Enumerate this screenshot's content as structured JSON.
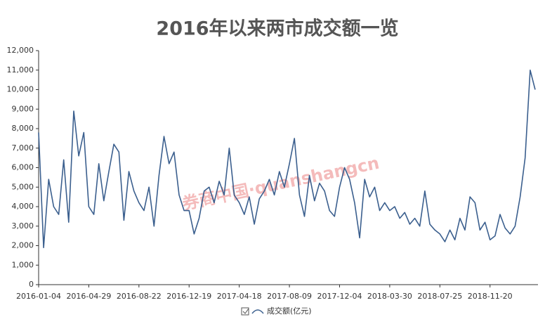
{
  "chart_data": {
    "type": "line",
    "title": "2016年以来两市成交额一览",
    "watermark": "券商中国·quanshangcn",
    "categories": [
      "2016-01-04",
      null,
      null,
      null,
      null,
      null,
      null,
      null,
      null,
      null,
      "2016-04-29",
      null,
      null,
      null,
      null,
      null,
      null,
      null,
      null,
      null,
      "2016-08-22",
      null,
      null,
      null,
      null,
      null,
      null,
      null,
      null,
      null,
      "2016-12-19",
      null,
      null,
      null,
      null,
      null,
      null,
      null,
      null,
      null,
      "2017-04-18",
      null,
      null,
      null,
      null,
      null,
      null,
      null,
      null,
      null,
      "2017-08-09",
      null,
      null,
      null,
      null,
      null,
      null,
      null,
      null,
      null,
      "2017-12-04",
      null,
      null,
      null,
      null,
      null,
      null,
      null,
      null,
      null,
      "2018-03-30",
      null,
      null,
      null,
      null,
      null,
      null,
      null,
      null,
      null,
      "2018-07-25",
      null,
      null,
      null,
      null,
      null,
      null,
      null,
      null,
      null,
      "2018-11-20",
      null,
      null,
      null,
      null,
      null,
      null,
      null,
      null,
      null
    ],
    "series": [
      {
        "name": "成交额(亿元)",
        "color": "#3b5f8e",
        "values": [
          7800,
          1900,
          5400,
          4000,
          3600,
          6400,
          3200,
          8900,
          6600,
          7800,
          4000,
          3600,
          6200,
          4300,
          5800,
          7200,
          6800,
          3300,
          5800,
          4800,
          4200,
          3800,
          5000,
          3000,
          5600,
          7600,
          6200,
          6800,
          4600,
          3800,
          3800,
          2600,
          3400,
          4800,
          5000,
          4200,
          5300,
          4600,
          7000,
          4600,
          4200,
          3600,
          4500,
          3100,
          4400,
          4800,
          5400,
          4600,
          5800,
          5000,
          6200,
          7500,
          4600,
          3500,
          5600,
          4300,
          5200,
          4800,
          3800,
          3500,
          5000,
          6000,
          5400,
          4200,
          2400,
          5400,
          4500,
          5000,
          3800,
          4200,
          3800,
          4000,
          3400,
          3700,
          3100,
          3400,
          3000,
          4800,
          3100,
          2800,
          2600,
          2200,
          2800,
          2300,
          3400,
          2800,
          4500,
          4200,
          2800,
          3200,
          2300,
          2500,
          3600,
          2900,
          2600,
          3000,
          4500,
          6500,
          11000,
          10000
        ]
      }
    ],
    "ylim": [
      0,
      12000
    ],
    "yticks": [
      0,
      {
        "value": 1000,
        "label": "1,000"
      },
      {
        "value": 2000,
        "label": "2,000"
      },
      {
        "value": 3000,
        "label": "3,000"
      },
      {
        "value": 4000,
        "label": "4,000"
      },
      {
        "value": 5000,
        "label": "5,000"
      },
      {
        "value": 6000,
        "label": "6,000"
      },
      {
        "value": 7000,
        "label": "7,000"
      },
      {
        "value": 8000,
        "label": "8,000"
      },
      {
        "value": 9000,
        "label": "9,000"
      },
      {
        "value": 10000,
        "label": "10,000"
      },
      {
        "value": 11000,
        "label": "11,000"
      },
      {
        "value": 12000,
        "label": "12,000"
      }
    ],
    "grid": false
  }
}
